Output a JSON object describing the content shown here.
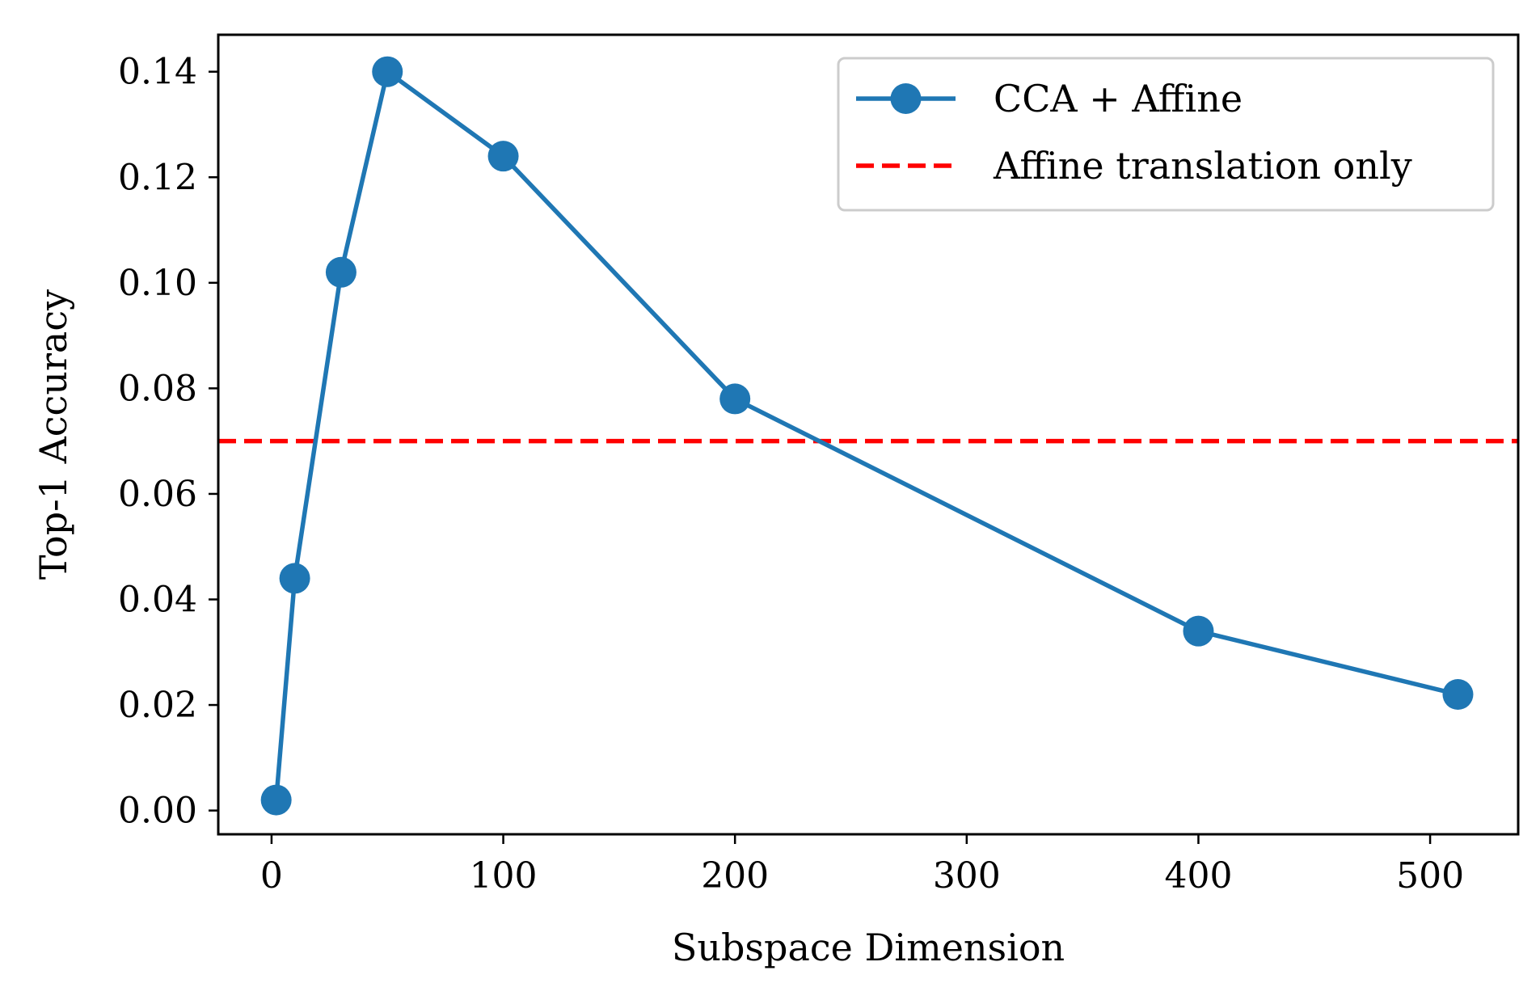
{
  "chart_data": {
    "type": "line",
    "title": "",
    "xlabel": "Subspace Dimension",
    "ylabel": "Top-1 Accuracy",
    "xlim": [
      -23,
      538
    ],
    "ylim": [
      -0.0045,
      0.147
    ],
    "xticks": [
      0,
      100,
      200,
      300,
      400,
      500
    ],
    "xtick_labels": [
      "0",
      "100",
      "200",
      "300",
      "400",
      "500"
    ],
    "yticks": [
      0.0,
      0.02,
      0.04,
      0.06,
      0.08,
      0.1,
      0.12,
      0.14
    ],
    "ytick_labels": [
      "0.00",
      "0.02",
      "0.04",
      "0.06",
      "0.08",
      "0.10",
      "0.12",
      "0.14"
    ],
    "grid": false,
    "legend_position": "top-right",
    "series": [
      {
        "name": "CCA + Affine",
        "style": "solid-line-circle-markers",
        "color": "#1f77b4",
        "x": [
          2,
          10,
          30,
          50,
          100,
          200,
          400,
          512
        ],
        "y": [
          0.002,
          0.044,
          0.102,
          0.14,
          0.124,
          0.078,
          0.034,
          0.022
        ]
      }
    ],
    "reference_lines": [
      {
        "name": "Affine translation only",
        "orientation": "horizontal",
        "style": "dashed",
        "color": "#ff0000",
        "y": 0.07
      }
    ]
  }
}
